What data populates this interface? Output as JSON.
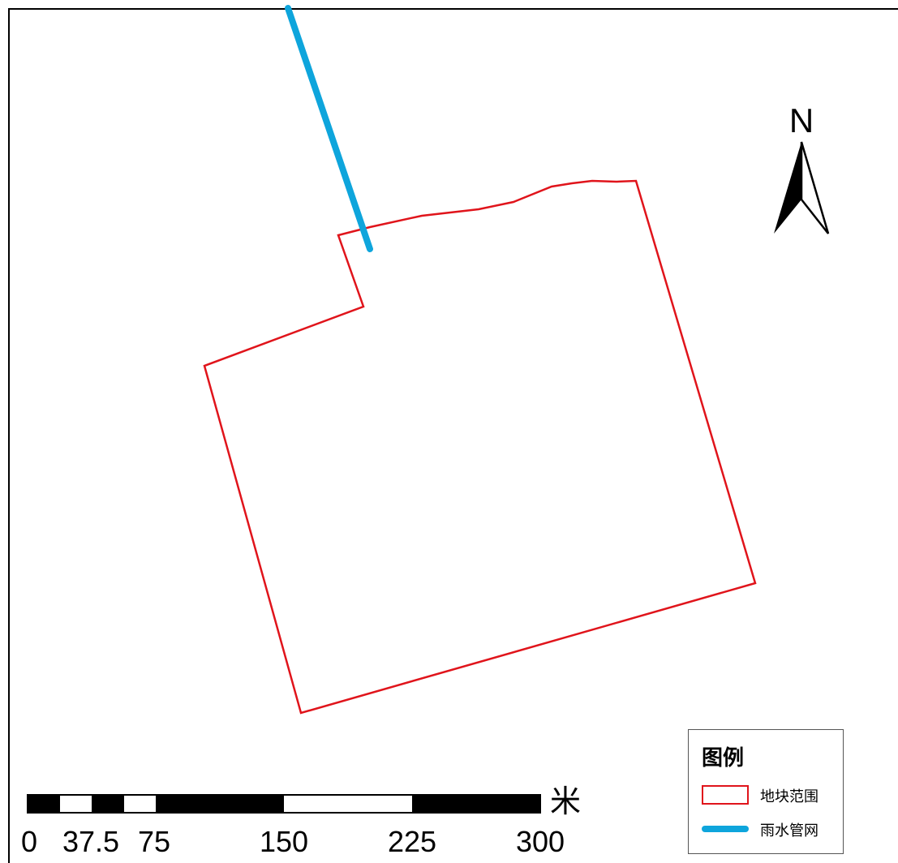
{
  "north_arrow": {
    "label": "N"
  },
  "scale_bar": {
    "unit": "米",
    "tick_labels": [
      "0",
      "37.5",
      "75",
      "150",
      "225",
      "300"
    ]
  },
  "legend": {
    "title": "图例",
    "items": [
      {
        "label": "地块范围",
        "symbol": "polygon-outline",
        "color": "#e0141b"
      },
      {
        "label": "雨水管网",
        "symbol": "line",
        "color": "#0ea5dc"
      }
    ]
  },
  "colors": {
    "parcel_boundary": "#e0141b",
    "storm_pipe": "#0ea5dc",
    "background": "#ffffff"
  }
}
